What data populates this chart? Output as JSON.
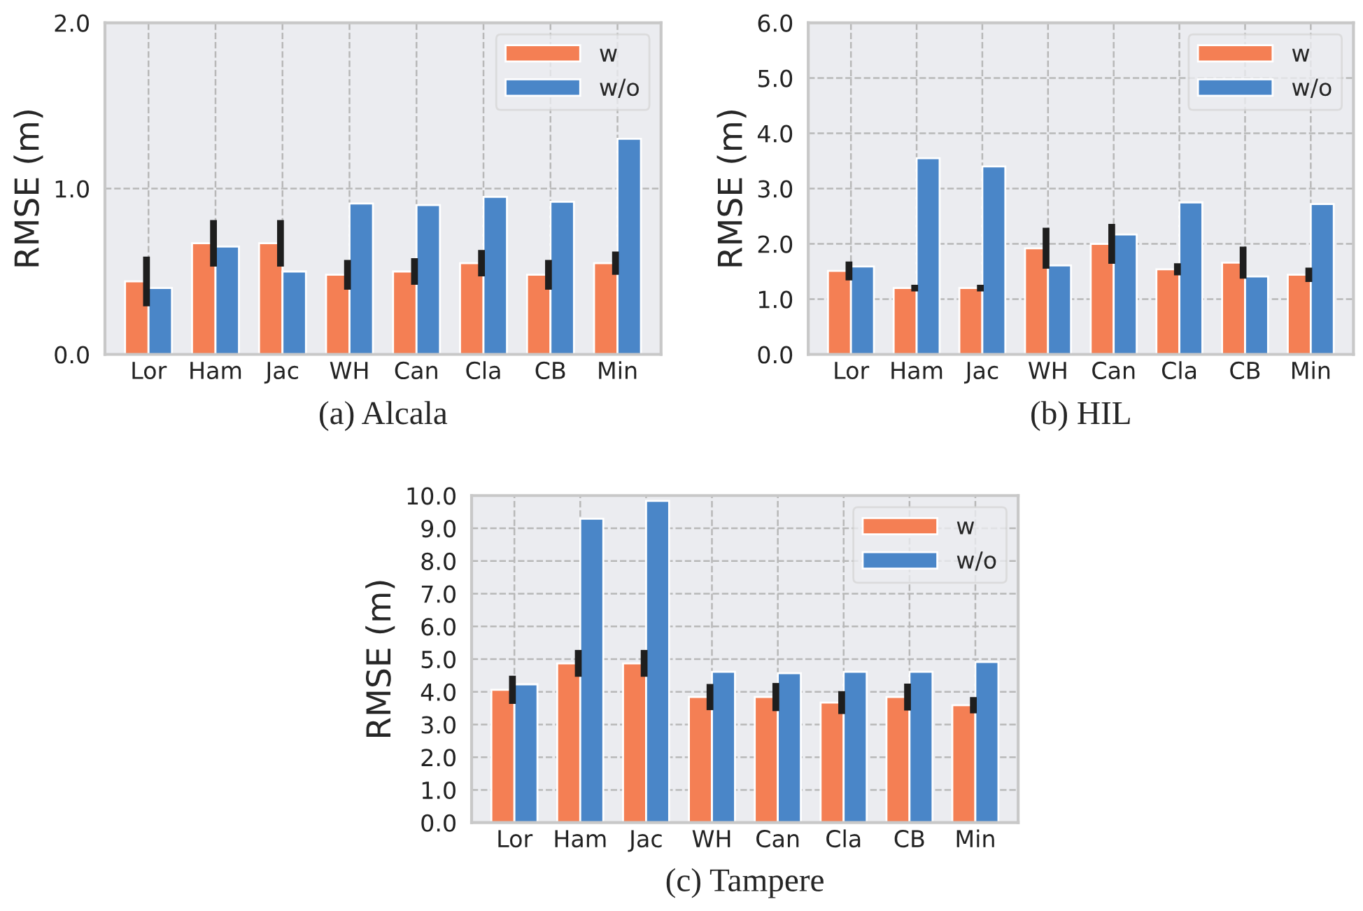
{
  "chart_data": [
    {
      "type": "bar",
      "title": "(a) Alcala",
      "ylabel": "RMSE (m)",
      "categories": [
        "Lor",
        "Ham",
        "Jac",
        "WH",
        "Can",
        "Cla",
        "CB",
        "Min"
      ],
      "ylim": [
        0,
        2.0
      ],
      "yticks": [
        {
          "value": 0,
          "label": "0.0"
        },
        {
          "value": 1,
          "label": "1.0"
        },
        {
          "value": 2,
          "label": "2.0"
        }
      ],
      "grid": true,
      "legend": "top right",
      "series": [
        {
          "name": "w",
          "color": "#f47f54",
          "values": [
            0.44,
            0.67,
            0.67,
            0.48,
            0.5,
            0.55,
            0.48,
            0.55
          ],
          "errors": [
            0.15,
            0.14,
            0.14,
            0.09,
            0.08,
            0.08,
            0.09,
            0.07
          ]
        },
        {
          "name": "w/o",
          "color": "#4a86c8",
          "values": [
            0.4,
            0.65,
            0.5,
            0.91,
            0.9,
            0.95,
            0.92,
            1.3
          ]
        }
      ]
    },
    {
      "type": "bar",
      "title": "(b) HIL",
      "ylabel": "RMSE (m)",
      "categories": [
        "Lor",
        "Ham",
        "Jac",
        "WH",
        "Can",
        "Cla",
        "CB",
        "Min"
      ],
      "ylim": [
        0,
        6.0
      ],
      "yticks": [
        {
          "value": 0,
          "label": "0.0"
        },
        {
          "value": 1,
          "label": "1.0"
        },
        {
          "value": 2,
          "label": "2.0"
        },
        {
          "value": 3,
          "label": "3.0"
        },
        {
          "value": 4,
          "label": "4.0"
        },
        {
          "value": 5,
          "label": "5.0"
        },
        {
          "value": 6,
          "label": "6.0"
        }
      ],
      "grid": true,
      "legend": "top right",
      "series": [
        {
          "name": "w",
          "color": "#f47f54",
          "values": [
            1.51,
            1.2,
            1.2,
            1.92,
            2.0,
            1.54,
            1.66,
            1.44
          ],
          "errors": [
            0.17,
            0.06,
            0.06,
            0.37,
            0.36,
            0.11,
            0.29,
            0.13
          ]
        },
        {
          "name": "w/o",
          "color": "#4a86c8",
          "values": [
            1.59,
            3.55,
            3.4,
            1.61,
            2.17,
            2.75,
            1.41,
            2.72
          ]
        }
      ]
    },
    {
      "type": "bar",
      "title": "(c) Tampere",
      "ylabel": "RMSE (m)",
      "categories": [
        "Lor",
        "Ham",
        "Jac",
        "WH",
        "Can",
        "Cla",
        "CB",
        "Min"
      ],
      "ylim": [
        0,
        10.0
      ],
      "yticks": [
        {
          "value": 0,
          "label": "0.0"
        },
        {
          "value": 1,
          "label": "1.0"
        },
        {
          "value": 2,
          "label": "2.0"
        },
        {
          "value": 3,
          "label": "3.0"
        },
        {
          "value": 4,
          "label": "4.0"
        },
        {
          "value": 5,
          "label": "5.0"
        },
        {
          "value": 6,
          "label": "6.0"
        },
        {
          "value": 7,
          "label": "7.0"
        },
        {
          "value": 8,
          "label": "8.0"
        },
        {
          "value": 9,
          "label": "9.0"
        },
        {
          "value": 10,
          "label": "10.0"
        }
      ],
      "grid": true,
      "legend": "top right",
      "series": [
        {
          "name": "w",
          "color": "#f47f54",
          "values": [
            4.06,
            4.87,
            4.87,
            3.84,
            3.84,
            3.67,
            3.84,
            3.59
          ],
          "errors": [
            0.43,
            0.41,
            0.41,
            0.4,
            0.43,
            0.35,
            0.41,
            0.25
          ]
        },
        {
          "name": "w/o",
          "color": "#4a86c8",
          "values": [
            4.23,
            9.29,
            9.84,
            4.61,
            4.57,
            4.61,
            4.61,
            4.91
          ]
        }
      ]
    }
  ]
}
